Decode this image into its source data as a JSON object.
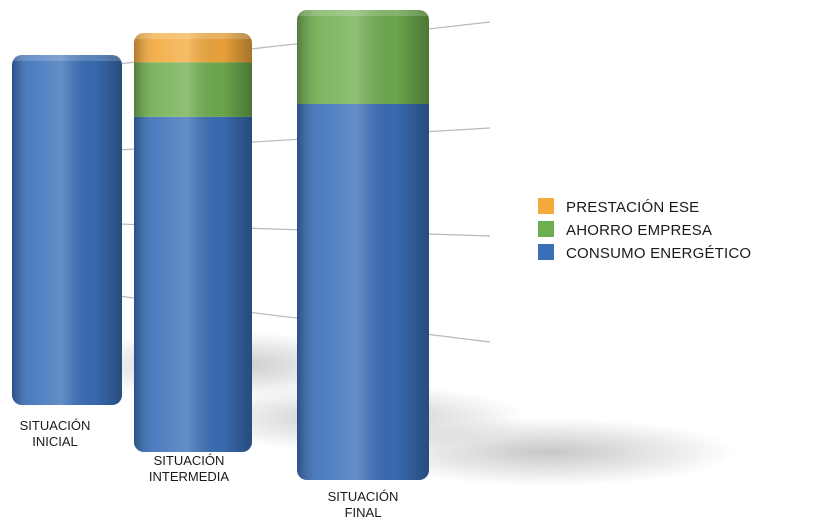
{
  "chart_data": {
    "type": "bar",
    "stacked": true,
    "title": "",
    "xlabel": "",
    "ylabel": "",
    "ylim": [
      0,
      100
    ],
    "grid": true,
    "legend_position": "right",
    "categories": [
      [
        "SITUACIÓN",
        "INICIAL"
      ],
      [
        "SITUACIÓN",
        "INTERMEDIA"
      ],
      [
        "SITUACIÓN",
        "FINAL"
      ]
    ],
    "series": [
      {
        "name": "CONSUMO ENERGÉTICO",
        "color": "#3a6fb8",
        "values": [
          100,
          80,
          80
        ]
      },
      {
        "name": "AHORRO EMPRESA",
        "color": "#6fae4f",
        "values": [
          0,
          13,
          20
        ]
      },
      {
        "name": "PRESTACIÓN ESE",
        "color": "#f3a93c",
        "values": [
          0,
          7,
          0
        ]
      }
    ],
    "legend_order": [
      "PRESTACIÓN ESE",
      "AHORRO EMPRESA",
      "CONSUMO ENERGÉTICO"
    ]
  }
}
